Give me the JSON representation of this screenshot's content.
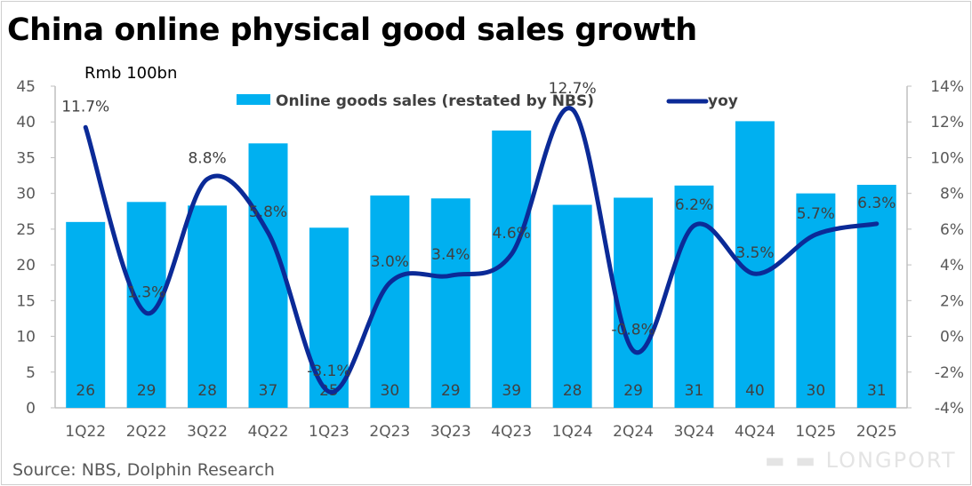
{
  "title": "China online physical good sales growth",
  "source": "Source: NBS, Dolphin Research",
  "logo_text": "LONGPORT",
  "chart_data": {
    "type": "bar+line",
    "title": "China online physical good sales growth",
    "y_left_label": "Rmb 100bn",
    "categories": [
      "1Q22",
      "2Q22",
      "3Q22",
      "4Q22",
      "1Q23",
      "2Q23",
      "3Q23",
      "4Q23",
      "1Q24",
      "2Q24",
      "3Q24",
      "4Q24",
      "1Q25",
      "2Q25"
    ],
    "y_left": {
      "min": 0,
      "max": 45,
      "step": 5,
      "ticks": [
        "0",
        "5",
        "10",
        "15",
        "20",
        "25",
        "30",
        "35",
        "40",
        "45"
      ]
    },
    "y_right": {
      "min": -4,
      "max": 14,
      "step": 2,
      "ticks": [
        "-4%",
        "-2%",
        "0%",
        "2%",
        "4%",
        "6%",
        "8%",
        "10%",
        "12%",
        "14%"
      ]
    },
    "grid": false,
    "legend_position": "top",
    "series": [
      {
        "name": "Online goods sales (restated by NBS)",
        "type": "bar",
        "axis": "left",
        "color": "#00b0f0",
        "values": [
          26.0,
          28.8,
          28.3,
          37.0,
          25.2,
          29.7,
          29.3,
          38.8,
          28.4,
          29.4,
          31.1,
          40.1,
          30.0,
          31.2
        ],
        "labels": [
          "26",
          "29",
          "28",
          "37",
          "25",
          "30",
          "29",
          "39",
          "28",
          "29",
          "31",
          "40",
          "30",
          "31"
        ]
      },
      {
        "name": "yoy",
        "type": "line",
        "axis": "right",
        "color": "#0b2a97",
        "values": [
          11.7,
          1.3,
          8.8,
          5.8,
          -3.1,
          3.0,
          3.4,
          4.6,
          12.7,
          -0.8,
          6.2,
          3.5,
          5.7,
          6.3
        ],
        "labels": [
          "11.7%",
          "1.3%",
          "8.8%",
          "5.8%",
          "-3.1%",
          "3.0%",
          "3.4%",
          "4.6%",
          "12.7%",
          "-0.8%",
          "6.2%",
          "3.5%",
          "5.7%",
          "6.3%"
        ]
      }
    ]
  }
}
